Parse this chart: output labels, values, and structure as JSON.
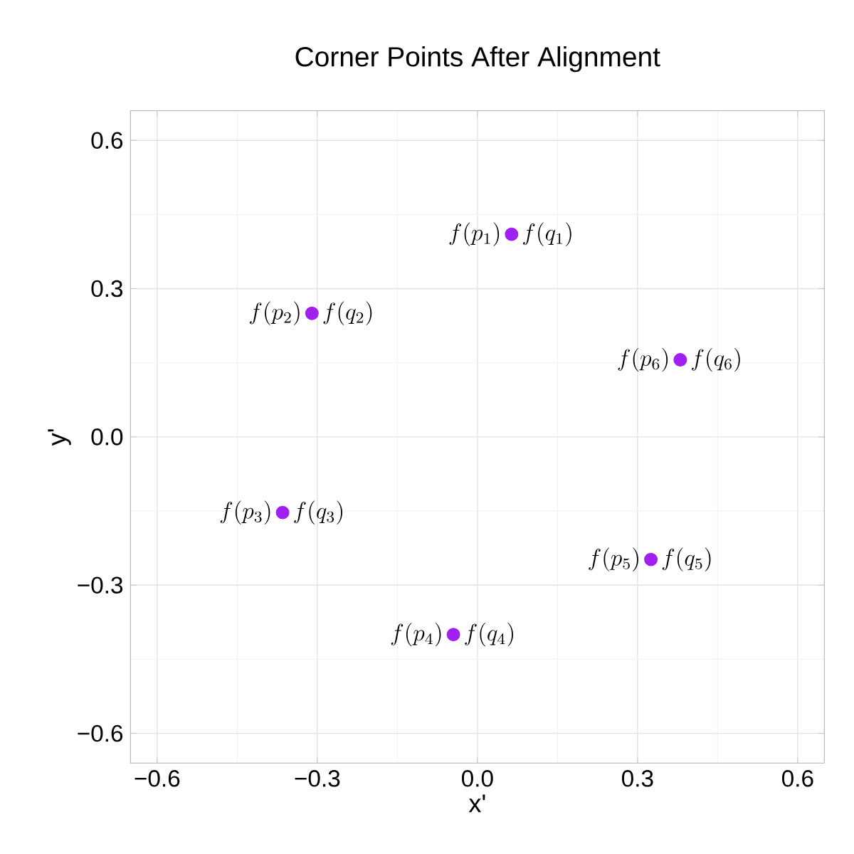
{
  "chart_data": {
    "type": "scatter",
    "title": "Corner Points After Alignment",
    "xlabel": "x'",
    "ylabel": "y'",
    "x": [
      0.064,
      -0.31,
      -0.365,
      -0.045,
      0.325,
      0.38
    ],
    "values": [
      0.41,
      0.25,
      -0.153,
      -0.4,
      -0.248,
      0.156
    ],
    "color": "#a020f0",
    "marker": "circle",
    "grid": true,
    "xlim": [
      -0.65,
      0.65
    ],
    "ylim": [
      -0.66,
      0.66
    ],
    "xticks": [
      {
        "value": -0.6,
        "label": "−0.6"
      },
      {
        "value": -0.3,
        "label": "−0.3"
      },
      {
        "value": 0,
        "label": "0.0"
      },
      {
        "value": 0.3,
        "label": "0.3"
      },
      {
        "value": 0.6,
        "label": "0.6"
      }
    ],
    "yticks": [
      {
        "value": -0.6,
        "label": "−0.6"
      },
      {
        "value": -0.3,
        "label": "−0.3"
      },
      {
        "value": 0,
        "label": "0.0"
      },
      {
        "value": 0.3,
        "label": "0.3"
      },
      {
        "value": 0.6,
        "label": "0.6"
      }
    ],
    "annotations": [
      {
        "text": "f(p_1)",
        "x": 0.064,
        "y": 0.41
      },
      {
        "text": "f(q_1)",
        "x": 0.064,
        "y": 0.41
      },
      {
        "text": "f(p_2)",
        "x": -0.31,
        "y": 0.25
      },
      {
        "text": "f(q_2)",
        "x": -0.31,
        "y": 0.25
      },
      {
        "text": "f(p_3)",
        "x": -0.365,
        "y": -0.153
      },
      {
        "text": "f(q_3)",
        "x": -0.365,
        "y": -0.153
      },
      {
        "text": "f(p_4)",
        "x": -0.045,
        "y": -0.4
      },
      {
        "text": "f(q_4)",
        "x": -0.045,
        "y": -0.4
      },
      {
        "text": "f(p_5)",
        "x": 0.325,
        "y": -0.248
      },
      {
        "text": "f(q_5)",
        "x": 0.325,
        "y": -0.248
      },
      {
        "text": "f(p_6)",
        "x": 0.38,
        "y": 0.156
      },
      {
        "text": "f(q_6)",
        "x": 0.38,
        "y": 0.156
      }
    ]
  }
}
